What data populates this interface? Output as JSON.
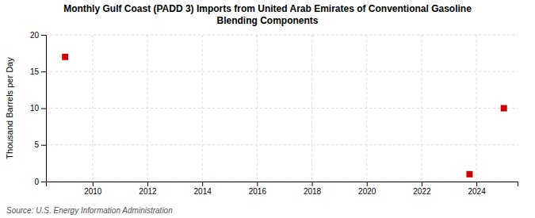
{
  "chart_data": {
    "type": "scatter",
    "title": "Monthly Gulf Coast (PADD 3) Imports from United Arab Emirates of Conventional Gasoline\nBlending Components",
    "ylabel": "Thousand Barrels per Day",
    "source": "Source: U.S. Energy Information Administration",
    "x": [
      2009.0,
      2023.75,
      2025.0
    ],
    "values": [
      17.0,
      1.0,
      10.0
    ],
    "color": "#cc0000",
    "marker": "square",
    "xlim": [
      2008.3,
      2025.5
    ],
    "ylim": [
      0,
      20
    ],
    "xticks": [
      2010,
      2012,
      2014,
      2016,
      2018,
      2020,
      2022,
      2024
    ],
    "yticks": [
      0,
      5,
      10,
      15,
      20
    ],
    "grid": true
  }
}
